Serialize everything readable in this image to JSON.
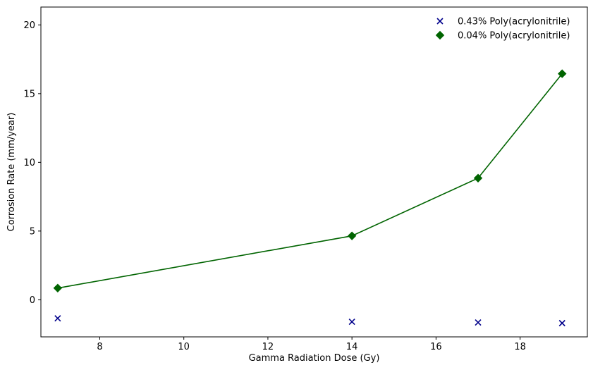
{
  "chart_data": {
    "type": "scatter",
    "xlabel": "Gamma Radiation Dose (Gy)",
    "ylabel": "Corrosion Rate (mm/year)",
    "xlim": [
      6.6,
      19.6
    ],
    "ylim": [
      -2.7,
      21.3
    ],
    "xticks": [
      8,
      10,
      12,
      14,
      16,
      18
    ],
    "yticks": [
      0,
      5,
      10,
      15,
      20
    ],
    "xtick_labels": [
      "8",
      "10",
      "12",
      "14",
      "16",
      "18"
    ],
    "ytick_labels": [
      "0",
      "5",
      "10",
      "15",
      "20"
    ],
    "grid": false,
    "legend_position": "top-right",
    "series": [
      {
        "name": "0.43% Poly(acrylonitrile)",
        "marker": "x",
        "line": false,
        "color": "#00008b",
        "x": [
          7,
          14,
          17,
          19
        ],
        "y": [
          -1.35,
          -1.6,
          -1.65,
          -1.7
        ]
      },
      {
        "name": "0.04% Poly(acrylonitrile)",
        "marker": "diamond",
        "line": true,
        "color": "#006400",
        "x": [
          7,
          14,
          17,
          19
        ],
        "y": [
          0.85,
          4.65,
          8.85,
          16.45
        ]
      }
    ]
  }
}
